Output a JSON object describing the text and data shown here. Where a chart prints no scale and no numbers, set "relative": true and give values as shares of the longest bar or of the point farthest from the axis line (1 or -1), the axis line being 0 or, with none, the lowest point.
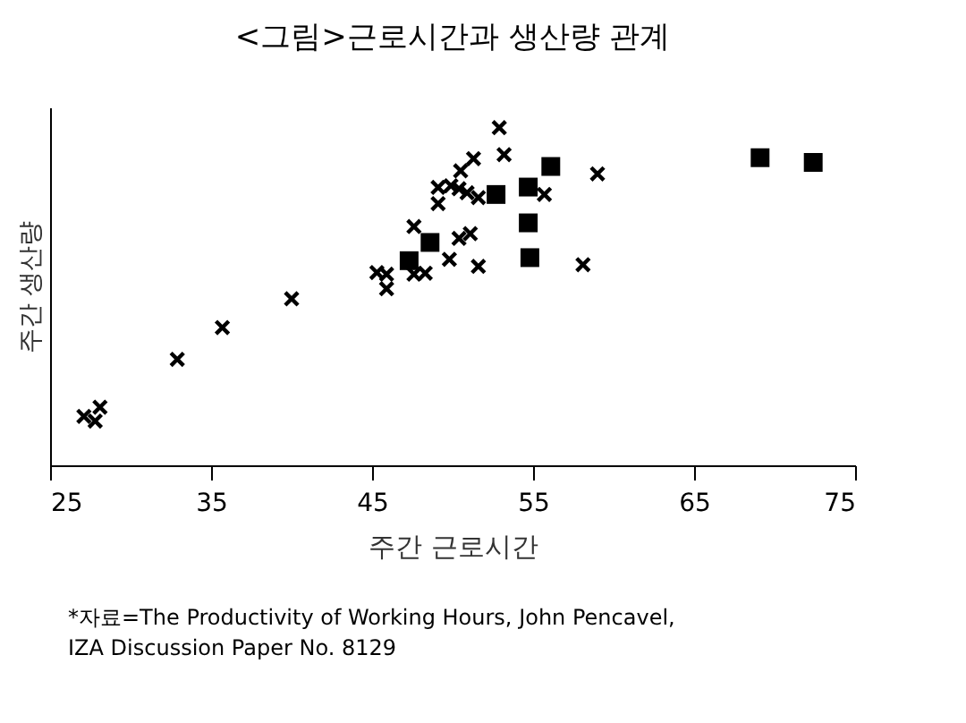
{
  "chart_data": {
    "type": "scatter",
    "title": "<그림>근로시간과 생산량 관계",
    "xlabel": "주간 근로시간",
    "ylabel": "주간 생산량",
    "relative": true,
    "xlim": [
      25,
      75
    ],
    "xticks": [
      25,
      35,
      45,
      55,
      65,
      75
    ],
    "grid": false,
    "series": [
      {
        "color": "#000000",
        "marker": "cross",
        "x": [
          27.1,
          27.8,
          28.1,
          32.9,
          35.7,
          40.0,
          45.3,
          45.9,
          45.9,
          47.6,
          47.6,
          48.3,
          49.1,
          49.1,
          52.9,
          53.2,
          51.3,
          50.5,
          49.9,
          50.4,
          50.9,
          51.6,
          55.7,
          59.0,
          50.4,
          51.1,
          49.8,
          51.6,
          58.1
        ],
        "values": [
          0.145,
          0.131,
          0.172,
          0.314,
          0.408,
          0.493,
          0.571,
          0.566,
          0.523,
          0.707,
          0.566,
          0.569,
          0.775,
          0.823,
          1.0,
          0.92,
          0.908,
          0.872,
          0.828,
          0.819,
          0.807,
          0.793,
          0.802,
          0.863,
          0.672,
          0.686,
          0.61,
          0.589,
          0.594
        ]
      },
      {
        "color": "#000000",
        "marker": "square",
        "x": [
          47.3,
          48.6,
          52.7,
          54.7,
          56.1,
          54.7,
          54.8,
          69.1,
          72.4
        ],
        "values": [
          0.606,
          0.66,
          0.802,
          0.824,
          0.885,
          0.718,
          0.615,
          0.911,
          0.897
        ]
      }
    ],
    "annotations": [
      "*자료=The Productivity of Working Hours, John Pencavel,",
      "IZA Discussion Paper No. 8129"
    ]
  }
}
